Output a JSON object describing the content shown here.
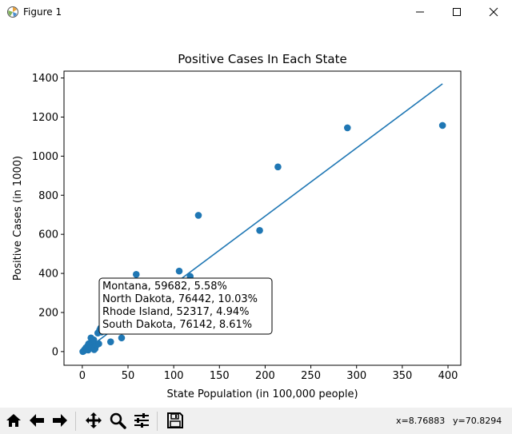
{
  "window": {
    "title": "Figure 1",
    "icons": {
      "app": "matplotlib-logo-icon",
      "minimize": "minimize-icon",
      "maximize": "maximize-icon",
      "close": "close-icon"
    }
  },
  "toolbar": {
    "buttons": [
      {
        "name": "home-icon",
        "label": "Home"
      },
      {
        "name": "back-arrow-icon",
        "label": "Back"
      },
      {
        "name": "forward-arrow-icon",
        "label": "Forward"
      },
      {
        "name": "pan-icon",
        "label": "Pan"
      },
      {
        "name": "zoom-icon",
        "label": "Zoom"
      },
      {
        "name": "configure-subplots-icon",
        "label": "Subplots"
      },
      {
        "name": "save-icon",
        "label": "Save"
      }
    ],
    "coord_x": "x=8.76883",
    "coord_y": "y=70.8294"
  },
  "chart_data": {
    "type": "scatter",
    "title": "Positive Cases In Each State",
    "xlabel": "State Population (in 100,000 people)",
    "ylabel": "Positive Cases (in 1000)",
    "xlim": [
      -20,
      414
    ],
    "ylim": [
      -70,
      1435
    ],
    "xticks": [
      0,
      50,
      100,
      150,
      200,
      250,
      300,
      350,
      400
    ],
    "yticks": [
      0,
      200,
      400,
      600,
      800,
      1000,
      1200,
      1400
    ],
    "grid": false,
    "color": "#1f77b4",
    "points": [
      [
        0.6,
        0
      ],
      [
        1.5,
        3
      ],
      [
        2.5,
        10
      ],
      [
        4,
        20
      ],
      [
        5,
        15
      ],
      [
        6,
        30
      ],
      [
        6.5,
        8
      ],
      [
        7,
        40
      ],
      [
        8,
        25
      ],
      [
        9,
        35
      ],
      [
        9.5,
        70
      ],
      [
        10,
        50
      ],
      [
        11,
        45
      ],
      [
        12,
        20
      ],
      [
        12.5,
        60
      ],
      [
        13,
        10
      ],
      [
        14,
        15
      ],
      [
        15,
        30
      ],
      [
        16,
        35
      ],
      [
        17,
        95
      ],
      [
        18,
        40
      ],
      [
        19,
        110
      ],
      [
        20,
        120
      ],
      [
        21,
        100
      ],
      [
        31,
        50
      ],
      [
        43,
        70
      ],
      [
        59,
        395
      ],
      [
        106,
        412
      ],
      [
        118,
        385
      ],
      [
        127,
        697
      ],
      [
        194,
        620
      ],
      [
        214,
        945
      ],
      [
        290,
        1145
      ],
      [
        394,
        1157
      ]
    ],
    "fit_line": {
      "x": [
        0,
        394
      ],
      "y": [
        -5,
        1370
      ]
    },
    "annotation": {
      "lines": [
        "Montana, 59682, 5.58%",
        "North Dakota, 76442, 10.03%",
        "Rhode Island, 52317, 4.94%",
        "South Dakota, 76142, 8.61%"
      ]
    }
  }
}
